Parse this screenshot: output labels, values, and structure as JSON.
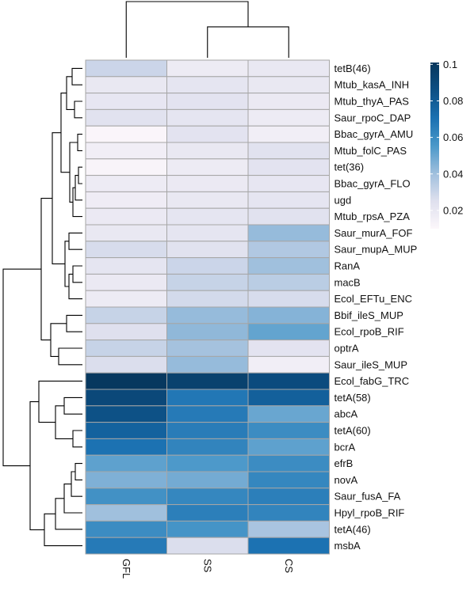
{
  "chart_data": {
    "type": "heatmap",
    "title": "",
    "columns": [
      "GFL",
      "SS",
      "CS"
    ],
    "rows": [
      "tetB(46)",
      "Mtub_kasA_INH",
      "Mtub_thyA_PAS",
      "Saur_rpoC_DAP",
      "Bbac_gyrA_AMU",
      "Mtub_folC_PAS",
      "tet(36)",
      "Bbac_gyrA_FLO",
      "ugd",
      "Mtub_rpsA_PZA",
      "Saur_murA_FOF",
      "Saur_mupA_MUP",
      "RanA",
      "macB",
      "Ecol_EFTu_ENC",
      "Bbif_ileS_MUP",
      "Ecol_rpoB_RIF",
      "optrA",
      "Saur_ileS_MUP",
      "Ecol_fabG_TRC",
      "tetA(58)",
      "abcA",
      "tetA(60)",
      "bcrA",
      "efrB",
      "novA",
      "Saur_fusA_FA",
      "Hpyl_rpoB_RIF",
      "tetA(46)",
      "msbA"
    ],
    "values": [
      [
        0.03,
        0.018,
        0.02
      ],
      [
        0.02,
        0.022,
        0.02
      ],
      [
        0.021,
        0.023,
        0.019
      ],
      [
        0.024,
        0.022,
        0.018
      ],
      [
        0.011,
        0.023,
        0.016
      ],
      [
        0.016,
        0.02,
        0.024
      ],
      [
        0.012,
        0.018,
        0.023
      ],
      [
        0.018,
        0.019,
        0.021
      ],
      [
        0.017,
        0.02,
        0.022
      ],
      [
        0.019,
        0.022,
        0.024
      ],
      [
        0.02,
        0.022,
        0.042
      ],
      [
        0.027,
        0.024,
        0.036
      ],
      [
        0.022,
        0.03,
        0.04
      ],
      [
        0.019,
        0.031,
        0.034
      ],
      [
        0.018,
        0.028,
        0.027
      ],
      [
        0.031,
        0.042,
        0.045
      ],
      [
        0.025,
        0.043,
        0.051
      ],
      [
        0.031,
        0.039,
        0.023
      ],
      [
        0.026,
        0.042,
        0.016
      ],
      [
        0.1,
        0.094,
        0.088
      ],
      [
        0.09,
        0.068,
        0.078
      ],
      [
        0.085,
        0.067,
        0.05
      ],
      [
        0.077,
        0.066,
        0.06
      ],
      [
        0.07,
        0.063,
        0.052
      ],
      [
        0.052,
        0.055,
        0.06
      ],
      [
        0.046,
        0.048,
        0.062
      ],
      [
        0.058,
        0.062,
        0.065
      ],
      [
        0.04,
        0.065,
        0.063
      ],
      [
        0.06,
        0.057,
        0.038
      ],
      [
        0.067,
        0.026,
        0.07
      ]
    ],
    "colorbar": {
      "ticks": [
        0.02,
        0.04,
        0.06,
        0.08,
        0.1
      ],
      "tick_labels": [
        "0.02",
        "0.04",
        "0.06",
        "0.08",
        "0.1"
      ],
      "range": [
        0.01,
        0.101
      ],
      "colors": [
        "#fcf7fb",
        "#dfe0ee",
        "#9fbfdd",
        "#4a98c9",
        "#1a70b1",
        "#0c4f84",
        "#07365c"
      ]
    },
    "col_dendrogram": {
      "merges": [
        {
          "left": "SS",
          "right": "CS",
          "height": 0.55
        },
        {
          "left": "GFL",
          "right": "SS+CS",
          "height": 1.0
        }
      ]
    },
    "row_dendrogram": {
      "merges": [
        {
          "a": 0,
          "b": 1,
          "h": 0.13
        },
        {
          "a": 2,
          "b": 3,
          "h": 0.1
        },
        {
          "a": 30,
          "b": 31,
          "h": 0.2
        },
        {
          "a": 4,
          "b": 5,
          "h": 0.06
        },
        {
          "a": 6,
          "b": 7,
          "h": 0.05
        },
        {
          "a": 34,
          "b": 8,
          "h": 0.09
        },
        {
          "a": 35,
          "b": 9,
          "h": 0.12
        },
        {
          "a": 33,
          "b": 36,
          "h": 0.16
        },
        {
          "a": 32,
          "b": 37,
          "h": 0.27
        },
        {
          "a": 10,
          "b": 11,
          "h": 0.17
        },
        {
          "a": 12,
          "b": 13,
          "h": 0.12
        },
        {
          "a": 40,
          "b": 14,
          "h": 0.17
        },
        {
          "a": 39,
          "b": 41,
          "h": 0.22
        },
        {
          "a": 38,
          "b": 42,
          "h": 0.38
        },
        {
          "a": 15,
          "b": 16,
          "h": 0.2
        },
        {
          "a": 17,
          "b": 18,
          "h": 0.3
        },
        {
          "a": 44,
          "b": 45,
          "h": 0.4
        },
        {
          "a": 43,
          "b": 46,
          "h": 0.52
        },
        {
          "a": 20,
          "b": 21,
          "h": 0.23
        },
        {
          "a": 22,
          "b": 23,
          "h": 0.12
        },
        {
          "a": 48,
          "b": 49,
          "h": 0.34
        },
        {
          "a": 19,
          "b": 50,
          "h": 0.55
        },
        {
          "a": 24,
          "b": 25,
          "h": 0.09
        },
        {
          "a": 52,
          "b": 26,
          "h": 0.14
        },
        {
          "a": 53,
          "b": 27,
          "h": 0.23
        },
        {
          "a": 54,
          "b": 28,
          "h": 0.34
        },
        {
          "a": 55,
          "b": 29,
          "h": 0.48
        },
        {
          "a": 51,
          "b": 56,
          "h": 0.66
        },
        {
          "a": 47,
          "b": 57,
          "h": 1.0
        }
      ]
    }
  }
}
